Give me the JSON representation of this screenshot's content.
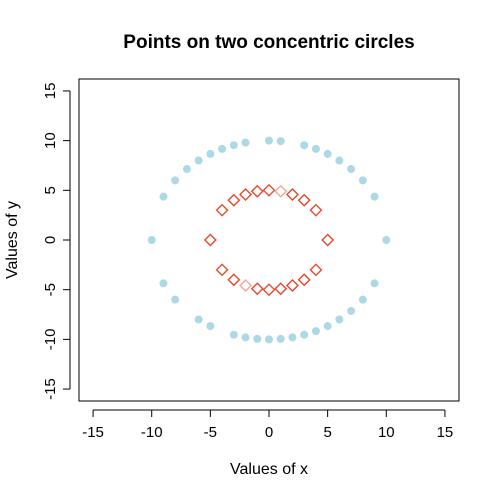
{
  "chart_data": {
    "type": "scatter",
    "title": "Points on two concentric circles",
    "xlabel": "Values of x",
    "ylabel": "Values of y",
    "xlim": [
      -16.2,
      16.2
    ],
    "ylim": [
      -16.2,
      16.2
    ],
    "xticks": [
      -15,
      -10,
      -5,
      0,
      5,
      10,
      15
    ],
    "yticks": [
      -15,
      -10,
      -5,
      0,
      5,
      10,
      15
    ],
    "xtick_labels": [
      "-15",
      "-10",
      "-5",
      "0",
      "5",
      "10",
      "15"
    ],
    "ytick_labels": [
      "-15",
      "-10",
      "-5",
      "0",
      "5",
      "10",
      "15"
    ],
    "grid": false,
    "series": [
      {
        "marker": "filled-circle",
        "color": "#add8e6",
        "points": [
          [
            -10,
            0
          ],
          [
            -9,
            4.36
          ],
          [
            -8,
            6
          ],
          [
            -7,
            7.14
          ],
          [
            -6,
            8
          ],
          [
            -5,
            8.66
          ],
          [
            -4,
            9.17
          ],
          [
            -3,
            9.54
          ],
          [
            -2,
            9.8
          ],
          [
            0,
            10
          ],
          [
            1,
            9.95
          ],
          [
            3,
            9.54
          ],
          [
            4,
            9.17
          ],
          [
            5,
            8.66
          ],
          [
            6,
            8
          ],
          [
            7,
            7.14
          ],
          [
            8,
            6
          ],
          [
            9,
            4.36
          ],
          [
            10,
            0
          ],
          [
            -9,
            -4.36
          ],
          [
            -8,
            -6
          ],
          [
            -6,
            -8
          ],
          [
            -5,
            -8.66
          ],
          [
            -3,
            -9.54
          ],
          [
            -2,
            -9.8
          ],
          [
            -1,
            -9.95
          ],
          [
            0,
            -10
          ],
          [
            1,
            -9.95
          ],
          [
            2,
            -9.8
          ],
          [
            3,
            -9.54
          ],
          [
            4,
            -9.17
          ],
          [
            5,
            -8.66
          ],
          [
            6,
            -8
          ],
          [
            7,
            -7.14
          ],
          [
            8,
            -6
          ],
          [
            9,
            -4.36
          ]
        ]
      },
      {
        "marker": "open-diamond",
        "color": "#e8472c",
        "points": [
          [
            -5,
            0
          ],
          [
            -4,
            3
          ],
          [
            -3,
            4
          ],
          [
            -2,
            4.58
          ],
          [
            -1,
            4.9
          ],
          [
            0,
            5
          ],
          [
            2,
            4.58
          ],
          [
            3,
            4
          ],
          [
            4,
            3
          ],
          [
            5,
            0
          ],
          [
            -4,
            -3
          ],
          [
            -3,
            -4
          ],
          [
            -1,
            -4.9
          ],
          [
            0,
            -5
          ],
          [
            1,
            -4.9
          ],
          [
            2,
            -4.58
          ],
          [
            3,
            -4
          ],
          [
            4,
            -3
          ]
        ]
      },
      {
        "marker": "open-diamond",
        "color": "#f4a896",
        "points": [
          [
            1,
            4.9
          ],
          [
            -2,
            -4.58
          ]
        ]
      }
    ]
  }
}
